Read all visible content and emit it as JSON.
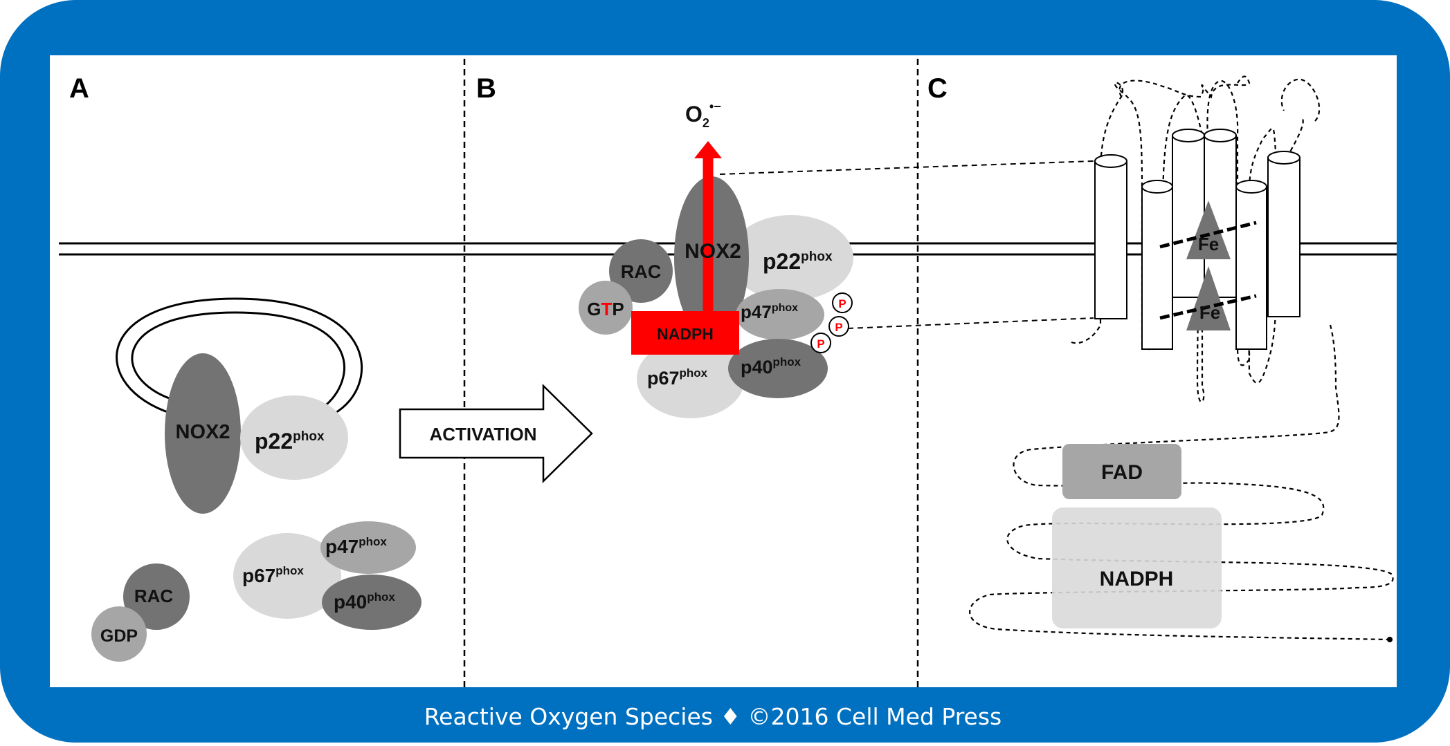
{
  "panels": {
    "a": "A",
    "b": "B",
    "c": "C"
  },
  "panel_a": {
    "nox2": "NOX2",
    "p22": "p22",
    "p67": "p67",
    "p47": "p47",
    "p40": "p40",
    "rac": "RAC",
    "gdp": "GDP",
    "sup": "phox"
  },
  "activation": "ACTIVATION",
  "panel_b": {
    "o2_base": "O",
    "o2_sub": "2",
    "o2_sup": "•−",
    "nox2": "NOX2",
    "p22": "p22",
    "rac": "RAC",
    "gtp_g": "G",
    "gtp_t": "T",
    "gtp_p": "P",
    "nadph": "NADPH",
    "p47": "p47",
    "p67": "p67",
    "p40": "p40",
    "phospho": "P",
    "sup": "phox"
  },
  "panel_c": {
    "fe1": "Fe",
    "fe2": "Fe",
    "fad": "FAD",
    "nadph": "NADPH"
  },
  "footer": "Reactive Oxygen Species ♦ ©2016 Cell Med Press",
  "colors": {
    "frame_blue": "#0070C0",
    "dark_gray": "#737373",
    "mid_gray": "#A6A6A6",
    "light_gray": "#D9D9D9",
    "red": "#FF0000"
  }
}
